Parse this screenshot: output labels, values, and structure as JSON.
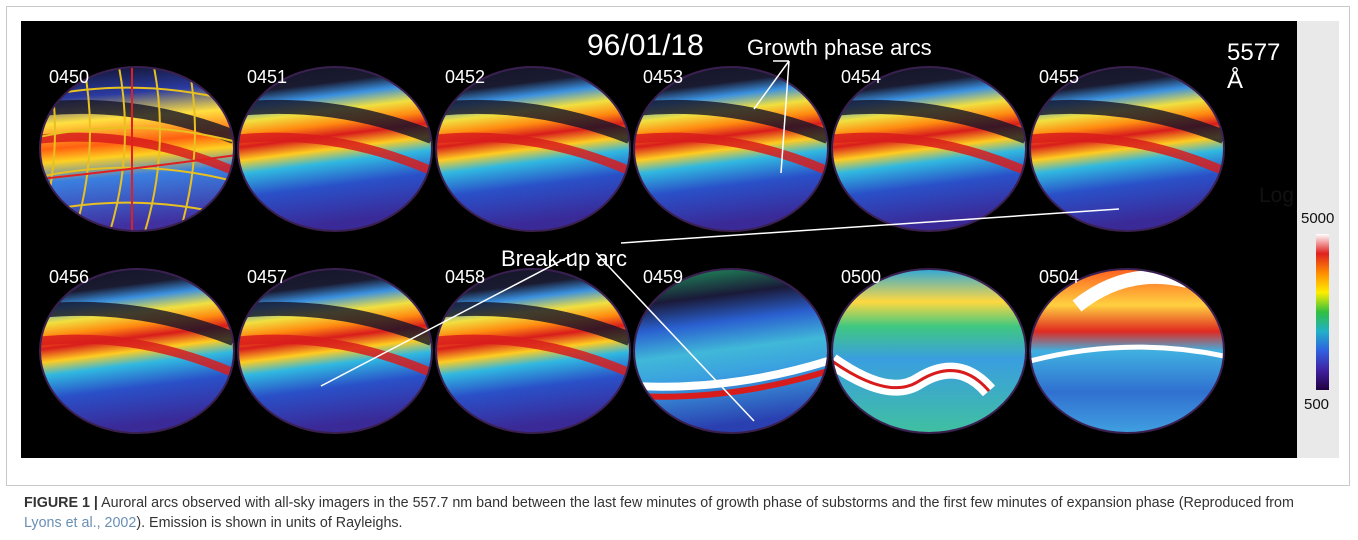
{
  "figure": {
    "date": "96/01/18",
    "wavelength": "5577 Å",
    "growth_annotation": "Growth phase arcs",
    "breakup_annotation": "Break-up arc",
    "colorbar": {
      "title": "Log R",
      "max_label": "5000",
      "min_label": "500",
      "colors": [
        "#ffffff",
        "#e02020",
        "#ff8c00",
        "#ffee00",
        "#30c040",
        "#20b0c8",
        "#3060e0",
        "#4020a0",
        "#200040"
      ]
    },
    "panels": [
      {
        "time": "0450",
        "type": "grid"
      },
      {
        "time": "0451",
        "type": "growth"
      },
      {
        "time": "0452",
        "type": "growth"
      },
      {
        "time": "0453",
        "type": "growth"
      },
      {
        "time": "0454",
        "type": "growth"
      },
      {
        "time": "0455",
        "type": "growth"
      },
      {
        "time": "0456",
        "type": "growth"
      },
      {
        "time": "0457",
        "type": "growth"
      },
      {
        "time": "0458",
        "type": "growth"
      },
      {
        "time": "0459",
        "type": "breakup"
      },
      {
        "time": "0500",
        "type": "expansion"
      },
      {
        "time": "0504",
        "type": "expansion"
      }
    ]
  },
  "caption": {
    "label": "FIGURE 1 |",
    "text_before_ref": " Auroral arcs observed with all-sky imagers in the 557.7 nm band between the last few minutes of growth phase of substorms and the first few minutes of expansion phase (Reproduced from ",
    "ref": "Lyons et al., 2002",
    "text_after_ref": "). Emission is shown in units of Rayleighs."
  }
}
